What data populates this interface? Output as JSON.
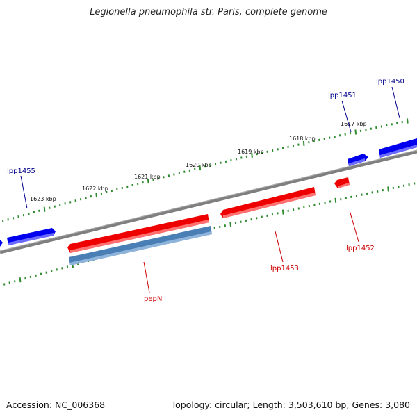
{
  "title": "Legionella pneumophila str. Paris, complete genome",
  "footer": {
    "accession": "Accession: NC_006368",
    "summary": "Topology: circular; Length: 3,503,610 bp; Genes: 3,080"
  },
  "ruler_labels": [
    "1617 kbp",
    "1618 kbp",
    "1619 kbp",
    "1620 kbp",
    "1621 kbp",
    "1622 kbp",
    "1623 kbp"
  ],
  "genes": [
    {
      "name": "lpp1450",
      "strand": "forward"
    },
    {
      "name": "lpp1451",
      "strand": "forward"
    },
    {
      "name": "lpp1452",
      "strand": "reverse"
    },
    {
      "name": "lpp1453",
      "strand": "reverse"
    },
    {
      "name": "pepN",
      "strand": "reverse"
    },
    {
      "name": "lpp1455",
      "strand": "forward"
    }
  ],
  "colors": {
    "backbone": "#7f7f7f",
    "forward_gene": "#0000ee",
    "reverse_gene": "#ee0000",
    "cds_feature": "#4a7fb5",
    "ticks": "#2e8b2e",
    "forward_label": "#00008b",
    "reverse_label": "#cc0000"
  }
}
